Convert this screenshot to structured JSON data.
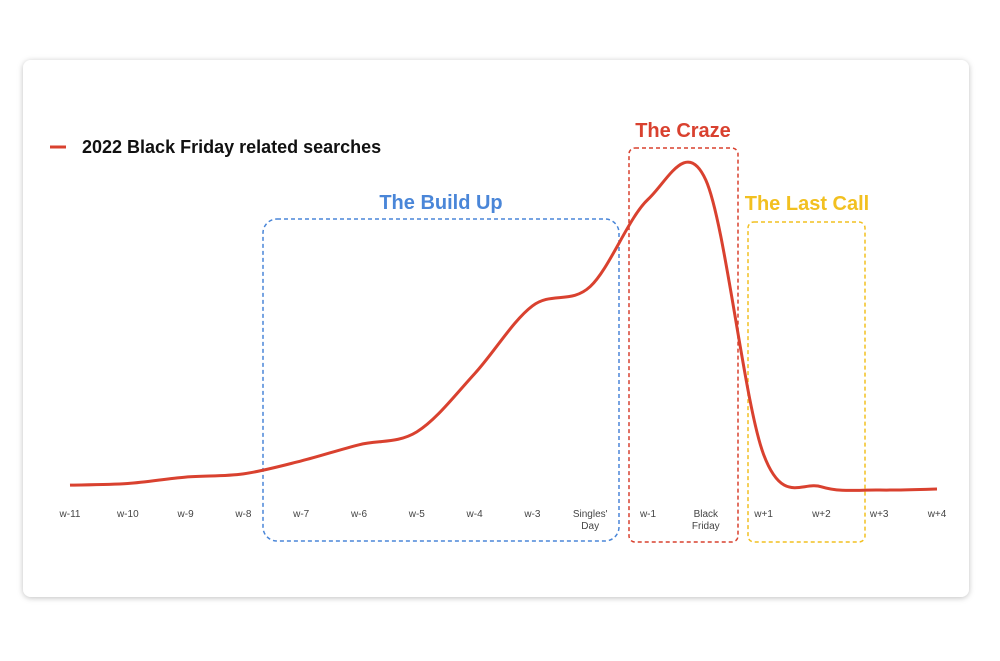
{
  "chart_data": {
    "type": "line",
    "categories": [
      "w-11",
      "w-10",
      "w-9",
      "w-8",
      "w-7",
      "w-6",
      "w-5",
      "w-4",
      "w-3",
      "Singles' Day",
      "w-1",
      "Black Friday",
      "w+1",
      "w+2",
      "w+3",
      "w+4"
    ],
    "series": [
      {
        "name": "2022 Black Friday related searches",
        "color": "#d9412f",
        "values": [
          1.5,
          2,
          4,
          5,
          9,
          14,
          18,
          36,
          57,
          63,
          90,
          96,
          11,
          1,
          0,
          0.3
        ]
      }
    ],
    "legend": "top-left",
    "annotations": [
      "The Build Up",
      "The Craze",
      "The Last Call"
    ]
  }
}
